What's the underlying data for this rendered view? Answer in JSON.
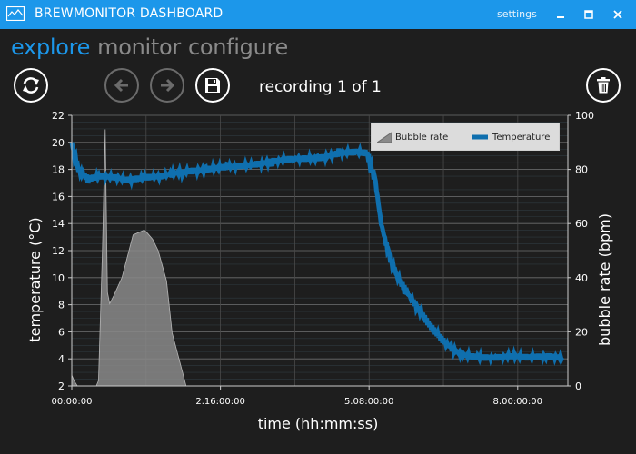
{
  "window": {
    "title": "BREWMONITOR DASHBOARD",
    "settings_label": "settings",
    "accent_color": "#1c97ea",
    "controls": [
      "minimize-icon",
      "maximize-icon",
      "close-icon"
    ]
  },
  "nav": {
    "tabs": [
      {
        "label": "explore",
        "active": true
      },
      {
        "label": "monitor",
        "active": false
      },
      {
        "label": "configure",
        "active": false
      }
    ]
  },
  "toolbar": {
    "refresh_icon": "refresh-icon",
    "back_icon": "arrow-left-icon",
    "forward_icon": "arrow-right-icon",
    "save_icon": "save-icon",
    "delete_icon": "trash-icon",
    "back_enabled": false,
    "forward_enabled": false,
    "recording_label": "recording 1 of 1"
  },
  "chart_data": {
    "type": "line",
    "xlabel": "time (hh:mm:ss)",
    "ylabel_left": "temperature (°C)",
    "ylabel_right": "bubble rate (bpm)",
    "x_ticks": [
      "00:00:00",
      "2.16:00:00",
      "5.08:00:00",
      "8.00:00:00"
    ],
    "x_tick_hours": [
      0,
      2.667,
      5.333,
      8.0
    ],
    "xlim_hours": [
      0,
      8.9
    ],
    "ylim_left": [
      2,
      22
    ],
    "y_ticks_left": [
      "2",
      "4",
      "6",
      "8",
      "10",
      "12",
      "14",
      "16",
      "18",
      "20",
      "22"
    ],
    "ylim_right": [
      0,
      100
    ],
    "y_ticks_right": [
      "0",
      "20",
      "40",
      "60",
      "80",
      "100"
    ],
    "legend": {
      "position": "top-right",
      "entries": [
        {
          "name": "Bubble rate",
          "color": "#8a8a8a"
        },
        {
          "name": "Temperature",
          "color": "#0f6fae"
        }
      ]
    },
    "series": [
      {
        "name": "Temperature",
        "axis": "left",
        "color": "#0f6fae",
        "x_hours": [
          0,
          0.05,
          0.12,
          0.2,
          0.3,
          0.5,
          0.8,
          1.0,
          1.3,
          1.6,
          1.8,
          2.0,
          2.4,
          2.8,
          3.2,
          3.6,
          4.0,
          4.4,
          4.8,
          5.1,
          5.3,
          5.45,
          5.55,
          5.7,
          5.85,
          6.0,
          6.2,
          6.4,
          6.6,
          6.8,
          7.0,
          7.3,
          7.6,
          7.9,
          8.2,
          8.5,
          8.8
        ],
        "values": [
          20.0,
          19.0,
          18.0,
          17.6,
          17.3,
          17.5,
          17.4,
          17.2,
          17.4,
          17.5,
          17.7,
          17.8,
          18.0,
          18.2,
          18.3,
          18.6,
          18.8,
          18.8,
          19.2,
          19.3,
          19.2,
          17.0,
          14.0,
          11.5,
          10.0,
          9.0,
          7.8,
          6.6,
          5.6,
          4.8,
          4.3,
          4.1,
          4.1,
          4.2,
          4.1,
          4.2,
          4.1
        ]
      },
      {
        "name": "Bubble rate",
        "axis": "right",
        "color": "#8a8a8a",
        "x_hours": [
          0.0,
          0.04,
          0.1,
          0.14,
          0.44,
          0.48,
          0.55,
          0.6,
          0.64,
          0.68,
          0.75,
          0.9,
          1.1,
          1.3,
          1.36,
          1.45,
          1.55,
          1.7,
          1.8,
          2.0,
          2.05
        ],
        "values": [
          4,
          2,
          0,
          0,
          0,
          2,
          50,
          94,
          35,
          30,
          34,
          40,
          55,
          58,
          56,
          55,
          50,
          38,
          20,
          4,
          0
        ]
      }
    ]
  }
}
